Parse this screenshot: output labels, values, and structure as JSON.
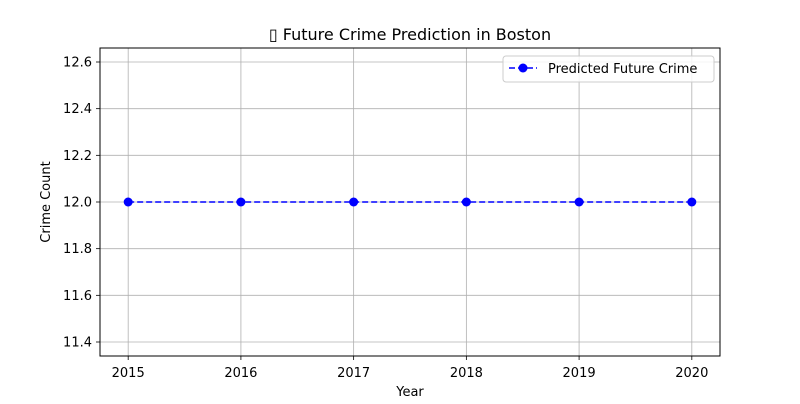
{
  "chart_data": {
    "type": "line",
    "title": "▯ Future Crime Prediction in Boston",
    "xlabel": "Year",
    "ylabel": "Crime Count",
    "x": [
      2015,
      2016,
      2017,
      2018,
      2019,
      2020
    ],
    "x_tick_labels": [
      "2015",
      "2016",
      "2017",
      "2018",
      "2019",
      "2020"
    ],
    "y_ticks": [
      11.4,
      11.6,
      11.8,
      12.0,
      12.2,
      12.4,
      12.6
    ],
    "y_tick_labels": [
      "11.4",
      "11.6",
      "11.8",
      "12.0",
      "12.2",
      "12.4",
      "12.6"
    ],
    "xlim": [
      2014.75,
      2020.25
    ],
    "ylim": [
      11.34,
      12.66
    ],
    "grid": true,
    "legend_position": "top-right",
    "series": [
      {
        "name": "Predicted Future Crime",
        "values": [
          12,
          12,
          12,
          12,
          12,
          12
        ],
        "color": "#0000ff",
        "line_style": "dashed",
        "marker": "circle"
      }
    ]
  }
}
